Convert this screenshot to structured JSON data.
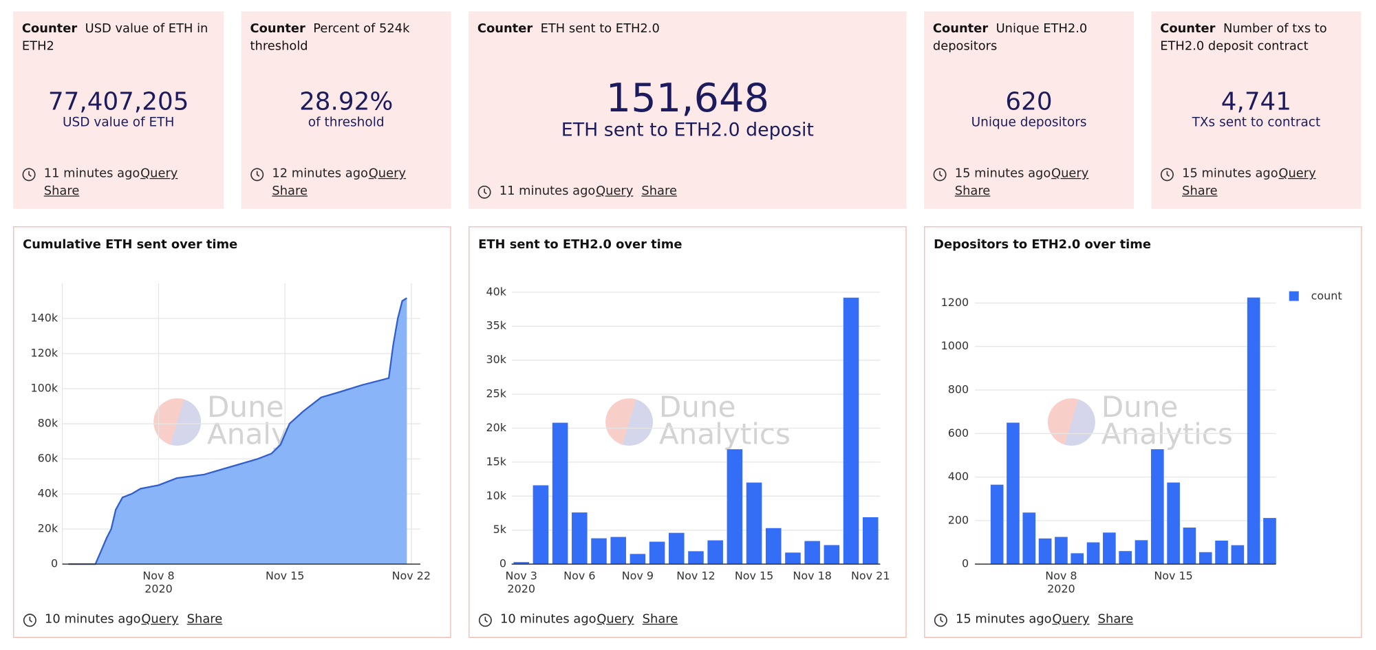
{
  "counters": [
    {
      "kind": "Counter",
      "title": "USD value of ETH in ETH2",
      "value": "77,407,205",
      "caption": "USD value of ETH",
      "updated": "11 minutes ago",
      "query": "Query",
      "share": "Share"
    },
    {
      "kind": "Counter",
      "title": "Percent of 524k threshold",
      "value": "28.92%",
      "caption": "of threshold",
      "updated": "12 minutes ago",
      "query": "Query",
      "share": "Share"
    },
    {
      "kind": "Counter",
      "title": "ETH sent to ETH2.0",
      "value": "151,648",
      "caption": "ETH sent to ETH2.0 deposit",
      "updated": "11 minutes ago",
      "query": "Query",
      "share": "Share"
    },
    {
      "kind": "Counter",
      "title": "Unique ETH2.0 depositors",
      "value": "620",
      "caption": "Unique depositors",
      "updated": "15 minutes ago",
      "query": "Query",
      "share": "Share"
    },
    {
      "kind": "Counter",
      "title": "Number of txs to ETH2.0 deposit contract",
      "value": "4,741",
      "caption": "TXs sent to contract",
      "updated": "15 minutes ago",
      "query": "Query",
      "share": "Share"
    }
  ],
  "watermark": [
    "Dune",
    "Analytics"
  ],
  "chart_data": [
    {
      "type": "area",
      "title": "Cumulative ETH sent over time",
      "color": "#8ab4f8",
      "line_color": "#2f5fcf",
      "x": [
        "2020-11-03T00:00",
        "2020-11-04T12:00",
        "2020-11-04T18:00",
        "2020-11-05T03:00",
        "2020-11-05T09:00",
        "2020-11-05T15:00",
        "2020-11-06T00:00",
        "2020-11-06T12:00",
        "2020-11-07T00:00",
        "2020-11-08T00:00",
        "2020-11-09T00:00",
        "2020-11-10T12:00",
        "2020-11-11T12:00",
        "2020-11-12T12:00",
        "2020-11-13T12:00",
        "2020-11-14T06:00",
        "2020-11-14T18:00",
        "2020-11-15T06:00",
        "2020-11-16T00:00",
        "2020-11-17T00:00",
        "2020-11-18T00:00",
        "2020-11-19T06:00",
        "2020-11-20T18:00",
        "2020-11-21T00:00",
        "2020-11-21T06:00",
        "2020-11-21T12:00",
        "2020-11-21T18:00"
      ],
      "values": [
        0,
        0,
        6000,
        15000,
        20000,
        31000,
        38000,
        40000,
        43000,
        45000,
        49000,
        51000,
        54000,
        57000,
        60000,
        63000,
        68000,
        80000,
        87000,
        95000,
        98000,
        102000,
        106000,
        125000,
        140000,
        150000,
        151648
      ],
      "xlim": [
        "2020-11-02T16:00",
        "2020-11-22T12:00"
      ],
      "xticks": [
        {
          "value": "2020-11-08T00:00",
          "label": "Nov 8"
        },
        {
          "value": "2020-11-15T00:00",
          "label": "Nov 15"
        },
        {
          "value": "2020-11-22T00:00",
          "label": "Nov 22"
        }
      ],
      "x_year_label": "2020",
      "ylim": [
        0,
        160000
      ],
      "yticks": [
        0,
        {
          "value": 20000,
          "label": "20k"
        },
        {
          "value": 40000,
          "label": "40k"
        },
        {
          "value": 60000,
          "label": "60k"
        },
        {
          "value": 80000,
          "label": "80k"
        },
        {
          "value": 100000,
          "label": "100k"
        },
        {
          "value": 120000,
          "label": "120k"
        },
        {
          "value": 140000,
          "label": "140k"
        }
      ],
      "grid": true,
      "xgrid": true,
      "updated": "10 minutes ago",
      "query": "Query",
      "share": "Share"
    },
    {
      "type": "bar",
      "title": "ETH sent to ETH2.0 over time",
      "color": "#356ef6",
      "categories": [
        "Nov 3",
        null,
        null,
        "Nov 6",
        null,
        null,
        "Nov 9",
        null,
        null,
        "Nov 12",
        null,
        null,
        "Nov 15",
        null,
        null,
        "Nov 18",
        null,
        null,
        "Nov 21"
      ],
      "values": [
        300,
        11600,
        20800,
        7600,
        3800,
        4000,
        1500,
        3300,
        4600,
        1900,
        3500,
        16900,
        12000,
        5300,
        1700,
        3400,
        2800,
        39200,
        6900
      ],
      "x_year_label": "2020",
      "ylim": [
        0,
        41300
      ],
      "yticks": [
        0,
        {
          "value": 5000,
          "label": "5k"
        },
        {
          "value": 10000,
          "label": "10k"
        },
        {
          "value": 15000,
          "label": "15k"
        },
        {
          "value": 20000,
          "label": "20k"
        },
        {
          "value": 25000,
          "label": "25k"
        },
        {
          "value": 30000,
          "label": "30k"
        },
        {
          "value": 35000,
          "label": "35k"
        },
        {
          "value": 40000,
          "label": "40k"
        }
      ],
      "grid": true,
      "updated": "10 minutes ago",
      "query": "Query",
      "share": "Share"
    },
    {
      "type": "bar",
      "title": "Depositors to ETH2.0 over time",
      "categories": [
        null,
        null,
        null,
        null,
        "Nov 8",
        null,
        null,
        null,
        null,
        null,
        null,
        "Nov 15",
        null,
        null,
        null,
        null,
        null,
        null
      ],
      "series": [
        {
          "name": "count",
          "color": "#356ef6",
          "values": [
            365,
            650,
            237,
            118,
            125,
            50,
            100,
            145,
            60,
            110,
            528,
            375,
            168,
            55,
            108,
            87,
            1225,
            212
          ]
        }
      ],
      "x_year_label": "2020",
      "ylim": [
        0,
        1290
      ],
      "yticks": [
        0,
        200,
        400,
        600,
        800,
        1000,
        1200
      ],
      "grid": true,
      "legend": "top-right",
      "updated": "15 minutes ago",
      "query": "Query",
      "share": "Share"
    }
  ]
}
